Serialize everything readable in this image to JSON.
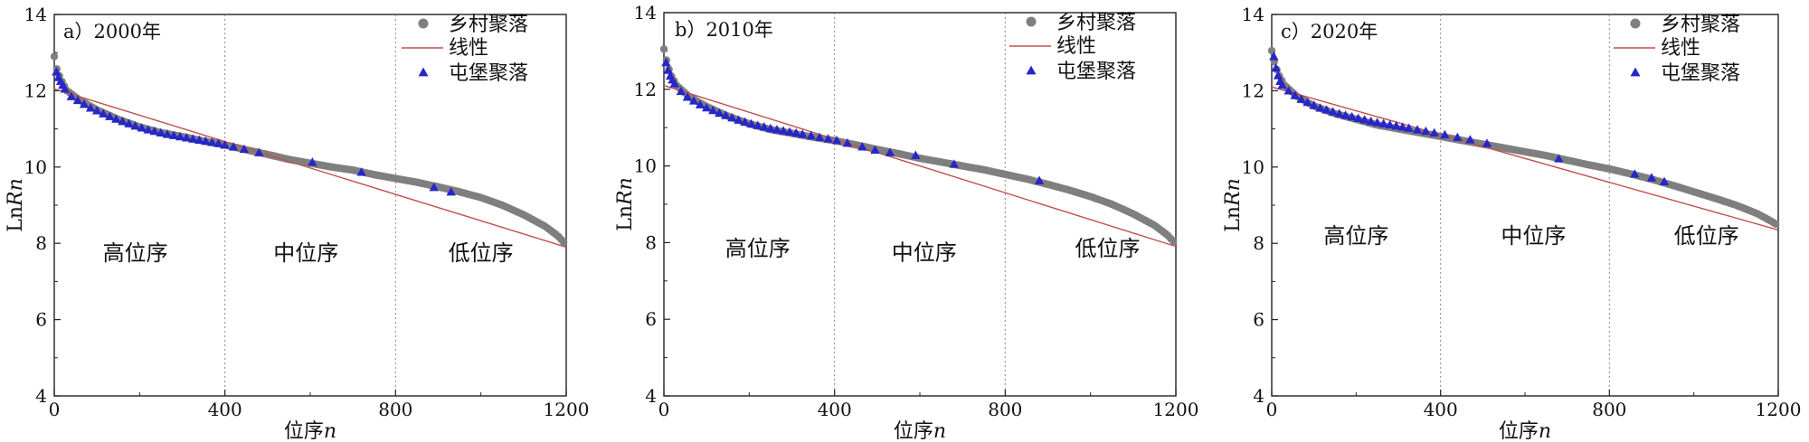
{
  "chart_data": [
    {
      "type": "scatter",
      "panel_label": "a）2000年",
      "xlabel": "位序n",
      "ylabel": "LnRn",
      "xlim": [
        0,
        1200
      ],
      "ylim": [
        4,
        14
      ],
      "xticks": [
        0,
        400,
        800,
        1200
      ],
      "yticks": [
        4,
        6,
        8,
        10,
        12,
        14
      ],
      "vlines": [
        400,
        800
      ],
      "regions": [
        {
          "label": "高位序",
          "x": 190,
          "y": 7.55
        },
        {
          "label": "中位序",
          "x": 590,
          "y": 7.55
        },
        {
          "label": "低位序",
          "x": 1000,
          "y": 7.55
        }
      ],
      "legend": [
        "乡村聚落",
        "线性",
        "屯堡聚落"
      ],
      "series": [
        {
          "name": "乡村聚落",
          "marker": "circle",
          "color": "#7f7f7f",
          "curve": [
            [
              0,
              12.9
            ],
            [
              5,
              12.6
            ],
            [
              15,
              12.3
            ],
            [
              30,
              12.0
            ],
            [
              60,
              11.75
            ],
            [
              100,
              11.5
            ],
            [
              150,
              11.25
            ],
            [
              200,
              11.05
            ],
            [
              250,
              10.9
            ],
            [
              300,
              10.8
            ],
            [
              350,
              10.68
            ],
            [
              400,
              10.58
            ],
            [
              450,
              10.45
            ],
            [
              500,
              10.33
            ],
            [
              550,
              10.2
            ],
            [
              600,
              10.1
            ],
            [
              650,
              10.0
            ],
            [
              700,
              9.92
            ],
            [
              750,
              9.8
            ],
            [
              800,
              9.7
            ],
            [
              850,
              9.6
            ],
            [
              900,
              9.48
            ],
            [
              950,
              9.35
            ],
            [
              1000,
              9.2
            ],
            [
              1050,
              9.0
            ],
            [
              1100,
              8.75
            ],
            [
              1150,
              8.45
            ],
            [
              1180,
              8.2
            ],
            [
              1195,
              8.02
            ]
          ]
        },
        {
          "name": "线性",
          "color": "#c0504d",
          "x": [
            0,
            1200
          ],
          "y": [
            12.05,
            7.9
          ]
        },
        {
          "name": "屯堡聚落",
          "marker": "triangle",
          "color": "#2626c9",
          "x": [
            5,
            10,
            15,
            20,
            25,
            40,
            55,
            70,
            85,
            100,
            115,
            130,
            145,
            160,
            175,
            190,
            205,
            220,
            235,
            250,
            265,
            280,
            295,
            310,
            325,
            340,
            355,
            370,
            385,
            400,
            420,
            445,
            480,
            605,
            720,
            890,
            930
          ],
          "y": [
            12.5,
            12.35,
            12.25,
            12.15,
            12.05,
            11.85,
            11.75,
            11.65,
            11.55,
            11.48,
            11.4,
            11.33,
            11.26,
            11.2,
            11.14,
            11.08,
            11.03,
            10.98,
            10.94,
            10.9,
            10.86,
            10.83,
            10.8,
            10.77,
            10.74,
            10.71,
            10.68,
            10.65,
            10.62,
            10.58,
            10.53,
            10.47,
            10.38,
            10.13,
            9.87,
            9.47,
            9.35
          ]
        }
      ]
    },
    {
      "type": "scatter",
      "panel_label": "b）2010年",
      "xlabel": "位序n",
      "ylabel": "LnRn",
      "xlim": [
        0,
        1200
      ],
      "ylim": [
        4,
        14
      ],
      "xticks": [
        0,
        400,
        800,
        1200
      ],
      "yticks": [
        4,
        6,
        8,
        10,
        12,
        14
      ],
      "vlines": [
        400,
        800
      ],
      "regions": [
        {
          "label": "高位序",
          "x": 220,
          "y": 7.65
        },
        {
          "label": "中位序",
          "x": 610,
          "y": 7.55
        },
        {
          "label": "低位序",
          "x": 1040,
          "y": 7.65
        }
      ],
      "legend": [
        "乡村聚落",
        "线性",
        "屯堡聚落"
      ],
      "series": [
        {
          "name": "乡村聚落",
          "marker": "circle",
          "color": "#7f7f7f",
          "curve": [
            [
              0,
              13.05
            ],
            [
              5,
              12.8
            ],
            [
              15,
              12.4
            ],
            [
              30,
              12.1
            ],
            [
              60,
              11.8
            ],
            [
              100,
              11.55
            ],
            [
              150,
              11.3
            ],
            [
              200,
              11.1
            ],
            [
              250,
              10.95
            ],
            [
              300,
              10.85
            ],
            [
              350,
              10.75
            ],
            [
              400,
              10.66
            ],
            [
              450,
              10.55
            ],
            [
              500,
              10.43
            ],
            [
              550,
              10.32
            ],
            [
              600,
              10.2
            ],
            [
              650,
              10.1
            ],
            [
              700,
              10.0
            ],
            [
              750,
              9.9
            ],
            [
              800,
              9.78
            ],
            [
              850,
              9.66
            ],
            [
              900,
              9.52
            ],
            [
              950,
              9.37
            ],
            [
              1000,
              9.2
            ],
            [
              1050,
              9.0
            ],
            [
              1100,
              8.75
            ],
            [
              1150,
              8.45
            ],
            [
              1180,
              8.2
            ],
            [
              1195,
              8.02
            ]
          ]
        },
        {
          "name": "线性",
          "color": "#c0504d",
          "x": [
            0,
            1200
          ],
          "y": [
            12.1,
            7.9
          ]
        },
        {
          "name": "屯堡聚落",
          "marker": "triangle",
          "color": "#2626c9",
          "x": [
            5,
            10,
            15,
            20,
            25,
            40,
            55,
            70,
            85,
            100,
            115,
            130,
            145,
            160,
            175,
            190,
            205,
            220,
            235,
            250,
            265,
            280,
            295,
            310,
            325,
            345,
            365,
            385,
            405,
            430,
            465,
            495,
            530,
            590,
            680,
            880
          ],
          "y": [
            12.7,
            12.5,
            12.35,
            12.25,
            12.15,
            11.95,
            11.8,
            11.7,
            11.6,
            11.52,
            11.45,
            11.38,
            11.32,
            11.26,
            11.2,
            11.15,
            11.1,
            11.06,
            11.02,
            10.98,
            10.95,
            10.92,
            10.89,
            10.86,
            10.83,
            10.79,
            10.75,
            10.71,
            10.67,
            10.6,
            10.5,
            10.42,
            10.35,
            10.28,
            10.05,
            9.62
          ]
        }
      ]
    },
    {
      "type": "scatter",
      "panel_label": "c）2020年",
      "xlabel": "位序n",
      "ylabel": "LnRn",
      "xlim": [
        0,
        1200
      ],
      "ylim": [
        4,
        14
      ],
      "xticks": [
        0,
        400,
        800,
        1200
      ],
      "yticks": [
        4,
        6,
        8,
        10,
        12,
        14
      ],
      "vlines": [
        400,
        800
      ],
      "regions": [
        {
          "label": "高位序",
          "x": 200,
          "y": 8.0
        },
        {
          "label": "中位序",
          "x": 620,
          "y": 8.0
        },
        {
          "label": "低位序",
          "x": 1030,
          "y": 8.0
        }
      ],
      "legend": [
        "乡村聚落",
        "线性",
        "屯堡聚落"
      ],
      "series": [
        {
          "name": "乡村聚落",
          "marker": "circle",
          "color": "#7f7f7f",
          "curve": [
            [
              0,
              13.05
            ],
            [
              5,
              12.8
            ],
            [
              15,
              12.45
            ],
            [
              30,
              12.15
            ],
            [
              60,
              11.85
            ],
            [
              100,
              11.6
            ],
            [
              150,
              11.4
            ],
            [
              200,
              11.25
            ],
            [
              250,
              11.1
            ],
            [
              300,
              11.0
            ],
            [
              350,
              10.9
            ],
            [
              400,
              10.8
            ],
            [
              450,
              10.7
            ],
            [
              500,
              10.6
            ],
            [
              550,
              10.5
            ],
            [
              600,
              10.4
            ],
            [
              650,
              10.3
            ],
            [
              700,
              10.18
            ],
            [
              750,
              10.06
            ],
            [
              800,
              9.95
            ],
            [
              850,
              9.82
            ],
            [
              900,
              9.68
            ],
            [
              950,
              9.52
            ],
            [
              1000,
              9.35
            ],
            [
              1050,
              9.18
            ],
            [
              1100,
              9.0
            ],
            [
              1150,
              8.78
            ],
            [
              1180,
              8.6
            ],
            [
              1195,
              8.5
            ]
          ]
        },
        {
          "name": "线性",
          "color": "#c0504d",
          "x": [
            0,
            1200
          ],
          "y": [
            12.1,
            8.35
          ]
        },
        {
          "name": "屯堡聚落",
          "marker": "triangle",
          "color": "#2626c9",
          "x": [
            5,
            10,
            15,
            20,
            25,
            40,
            55,
            70,
            85,
            100,
            115,
            130,
            145,
            160,
            175,
            190,
            205,
            220,
            235,
            250,
            265,
            280,
            295,
            310,
            325,
            345,
            365,
            385,
            410,
            440,
            470,
            510,
            680,
            860,
            900,
            930
          ],
          "y": [
            12.9,
            12.6,
            12.4,
            12.25,
            12.15,
            12.0,
            11.88,
            11.78,
            11.7,
            11.62,
            11.55,
            11.5,
            11.45,
            11.4,
            11.36,
            11.32,
            11.28,
            11.24,
            11.2,
            11.17,
            11.14,
            11.11,
            11.08,
            11.05,
            11.02,
            10.98,
            10.94,
            10.9,
            10.85,
            10.78,
            10.72,
            10.62,
            10.22,
            9.82,
            9.72,
            9.62
          ]
        }
      ]
    }
  ]
}
